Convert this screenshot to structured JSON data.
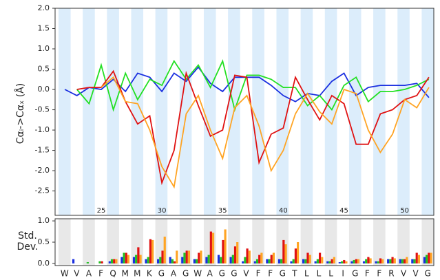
{
  "chart_data": [
    {
      "type": "line",
      "y_label": "Cαᵢ->Cαₓ (Å)",
      "x": [
        22,
        23,
        24,
        25,
        26,
        27,
        28,
        29,
        30,
        31,
        32,
        33,
        34,
        35,
        36,
        37,
        38,
        39,
        40,
        41,
        42,
        43,
        44,
        45,
        46,
        47,
        48,
        49,
        50,
        51,
        52
      ],
      "xlim": [
        21.2,
        52.4
      ],
      "xticks": [
        25,
        30,
        35,
        40,
        45,
        50
      ],
      "ylim": [
        -3.1,
        2.0
      ],
      "yticks": [
        {
          "value": 2,
          "label": "2.0"
        },
        1.5,
        {
          "value": 1,
          "label": "1.0"
        },
        0.5,
        {
          "value": 0,
          "label": "0.0"
        },
        -0.5,
        {
          "value": -1,
          "label": "-1.0"
        },
        -1.5,
        {
          "value": -2,
          "label": "-2.0"
        },
        -2.5
      ],
      "series": [
        {
          "color": "#1a2fe0",
          "values": [
            0.0,
            -0.15,
            0.05,
            0.0,
            0.25,
            -0.05,
            0.4,
            0.3,
            -0.05,
            0.4,
            0.2,
            0.55,
            0.15,
            -0.05,
            0.3,
            0.3,
            0.3,
            0.1,
            -0.15,
            -0.3,
            -0.1,
            -0.15,
            0.2,
            0.4,
            -0.15,
            0.05,
            0.1,
            0.1,
            0.1,
            0.15,
            -0.2
          ]
        },
        {
          "color": "#22e022",
          "values": [
            null,
            0.0,
            -0.35,
            0.6,
            -0.5,
            0.4,
            -0.25,
            0.25,
            0.1,
            0.7,
            0.25,
            0.6,
            0.05,
            0.7,
            -0.5,
            0.35,
            0.35,
            0.25,
            0.05,
            0.05,
            -0.4,
            -0.15,
            -0.5,
            0.1,
            0.3,
            -0.3,
            -0.05,
            -0.05,
            0.0,
            0.1,
            0.25
          ]
        },
        {
          "color": "#e01212",
          "values": [
            null,
            0.0,
            0.05,
            0.05,
            0.45,
            -0.3,
            -0.85,
            -0.65,
            -2.3,
            -1.5,
            0.4,
            -0.4,
            -1.15,
            -1.0,
            0.35,
            0.3,
            -1.8,
            -1.1,
            -0.95,
            0.3,
            -0.25,
            -0.75,
            -0.15,
            -0.35,
            -1.35,
            -1.35,
            -0.6,
            -0.5,
            -0.25,
            -0.15,
            0.3
          ]
        },
        {
          "color": "#ffa423",
          "values": [
            null,
            null,
            null,
            0.05,
            0.3,
            -0.3,
            -0.35,
            -1.0,
            -1.9,
            -2.4,
            -0.6,
            -0.15,
            -1.0,
            -1.7,
            -0.45,
            -0.15,
            -0.9,
            -2.0,
            -1.5,
            -0.6,
            -0.1,
            -0.55,
            -0.85,
            0.0,
            -0.1,
            -1.0,
            -1.55,
            -1.1,
            -0.25,
            -0.45,
            0.05
          ]
        }
      ]
    },
    {
      "type": "bar",
      "y_label": [
        "Std.",
        "Dev."
      ],
      "categories": [
        "W",
        "V",
        "A",
        "F",
        "Q",
        "M",
        "M",
        "K",
        "G",
        "A",
        "G",
        "W",
        "A",
        "G",
        "G",
        "V",
        "F",
        "F",
        "G",
        "T",
        "L",
        "L",
        "L",
        "I",
        "G",
        "F",
        "F",
        "R",
        "V",
        "V",
        "G"
      ],
      "ylim": [
        -0.05,
        1.05
      ],
      "yticks": [
        {
          "value": 0,
          "label": "0.0"
        },
        0.5,
        {
          "value": 1,
          "label": "1.0"
        }
      ],
      "series": [
        {
          "color": "#1a2fe0",
          "values": [
            0,
            0.1,
            0,
            0,
            0.05,
            0.15,
            0.15,
            0.1,
            0.1,
            0.15,
            0.15,
            0.1,
            0.15,
            0.2,
            0.15,
            0.05,
            0.05,
            0.1,
            0.1,
            0.05,
            0.1,
            0.05,
            0.05,
            0.03,
            0.05,
            0.05,
            0.05,
            0.1,
            0.1,
            0.1,
            0.15
          ]
        },
        {
          "color": "#22c022",
          "values": [
            0,
            0,
            0.03,
            0.05,
            0.1,
            0.25,
            0.2,
            0.15,
            0.15,
            0.1,
            0.25,
            0.1,
            0.2,
            0.15,
            0.2,
            0.15,
            0.1,
            0.1,
            0.1,
            0.1,
            0.1,
            0.1,
            0.05,
            0.05,
            0.08,
            0.1,
            0.05,
            0.1,
            0.1,
            0.1,
            0.2
          ]
        },
        {
          "color": "#e01212",
          "values": [
            0,
            0,
            0,
            0.05,
            0.1,
            0.25,
            0.38,
            0.57,
            0.3,
            0.05,
            0.3,
            0.25,
            0.75,
            0.55,
            0.4,
            0.35,
            0.2,
            0.2,
            0.55,
            0.35,
            0.25,
            0.25,
            0.1,
            0.08,
            0.1,
            0.15,
            0.12,
            0.15,
            0.1,
            0.25,
            0.25
          ]
        },
        {
          "color": "#ffa423",
          "values": [
            0,
            0,
            0,
            0,
            0.1,
            0.2,
            0.2,
            0.55,
            0.63,
            0.3,
            0.3,
            0.3,
            0.72,
            0.8,
            0.5,
            0.3,
            0.25,
            0.25,
            0.45,
            0.5,
            0.2,
            0.15,
            0.15,
            0.05,
            0.1,
            0.12,
            0.1,
            0.12,
            0.15,
            0.2,
            0.25
          ]
        }
      ]
    }
  ]
}
